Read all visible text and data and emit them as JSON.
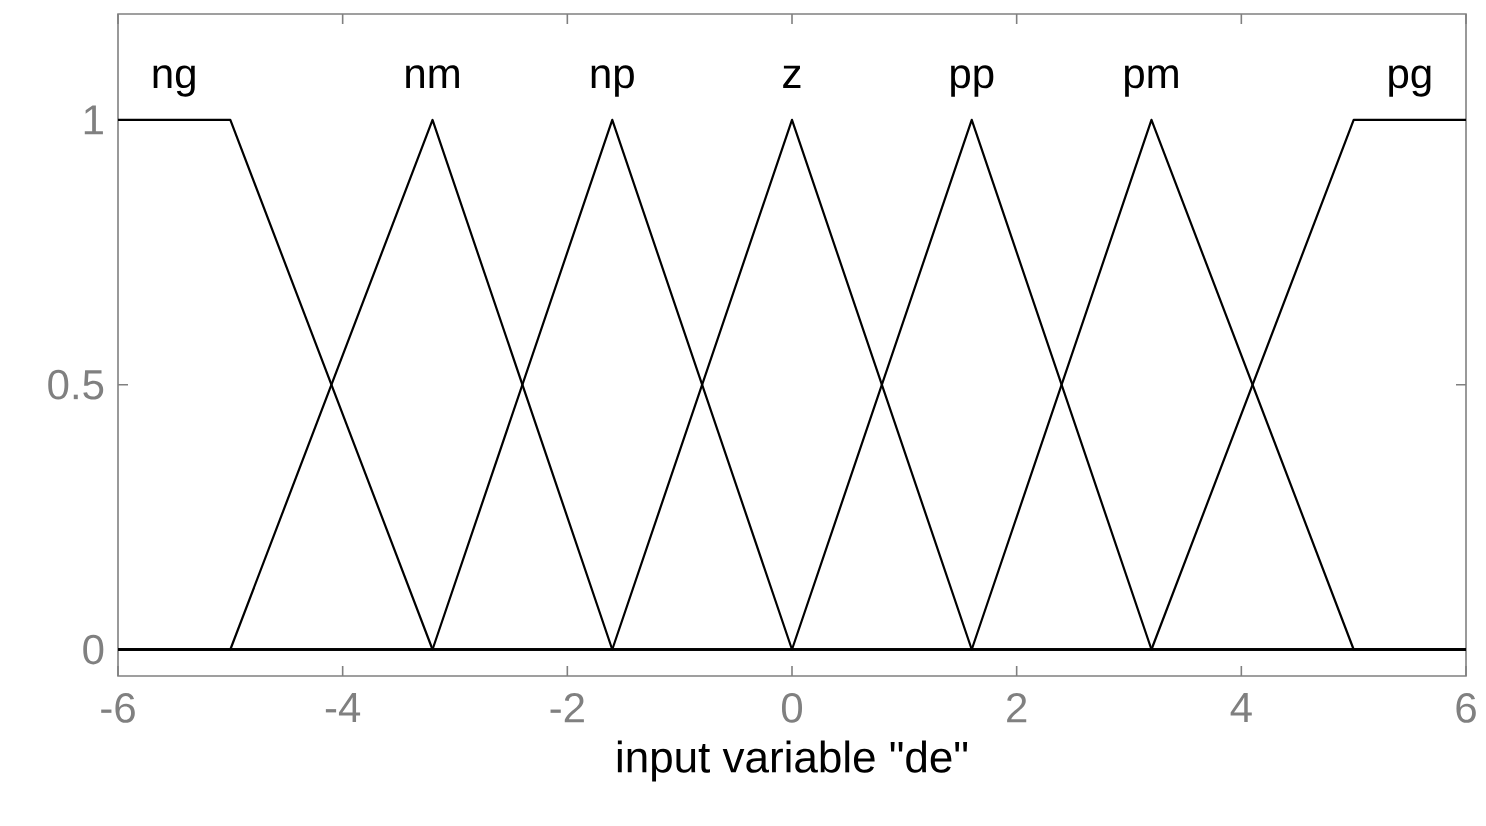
{
  "chart_data": {
    "type": "line",
    "xlabel": "input variable \"de\"",
    "xlim": [
      -6,
      6
    ],
    "ylim": [
      -0.05,
      1.2
    ],
    "xticks": [
      -6,
      -4,
      -2,
      0,
      2,
      4,
      6
    ],
    "yticks": [
      0,
      0.5,
      1
    ],
    "series": [
      {
        "name": "ng",
        "color": "#000000",
        "x": [
          -6,
          -5,
          -3.2,
          6
        ],
        "values": [
          1,
          1,
          0,
          0
        ]
      },
      {
        "name": "nm",
        "color": "#000000",
        "x": [
          -6,
          -5,
          -3.2,
          -1.6,
          6
        ],
        "values": [
          0,
          0,
          1,
          0,
          0
        ]
      },
      {
        "name": "np",
        "color": "#000000",
        "x": [
          -6,
          -3.2,
          -1.6,
          0,
          6
        ],
        "values": [
          0,
          0,
          1,
          0,
          0
        ]
      },
      {
        "name": "z",
        "color": "#000000",
        "x": [
          -6,
          -1.6,
          0,
          1.6,
          6
        ],
        "values": [
          0,
          0,
          1,
          0,
          0
        ]
      },
      {
        "name": "pp",
        "color": "#000000",
        "x": [
          -6,
          0,
          1.6,
          3.2,
          6
        ],
        "values": [
          0,
          0,
          1,
          0,
          0
        ]
      },
      {
        "name": "pm",
        "color": "#000000",
        "x": [
          -6,
          1.6,
          3.2,
          5,
          6
        ],
        "values": [
          0,
          0,
          1,
          0,
          0
        ]
      },
      {
        "name": "pg",
        "color": "#000000",
        "x": [
          -6,
          3.2,
          5,
          6
        ],
        "values": [
          0,
          0,
          1,
          1
        ]
      }
    ]
  }
}
